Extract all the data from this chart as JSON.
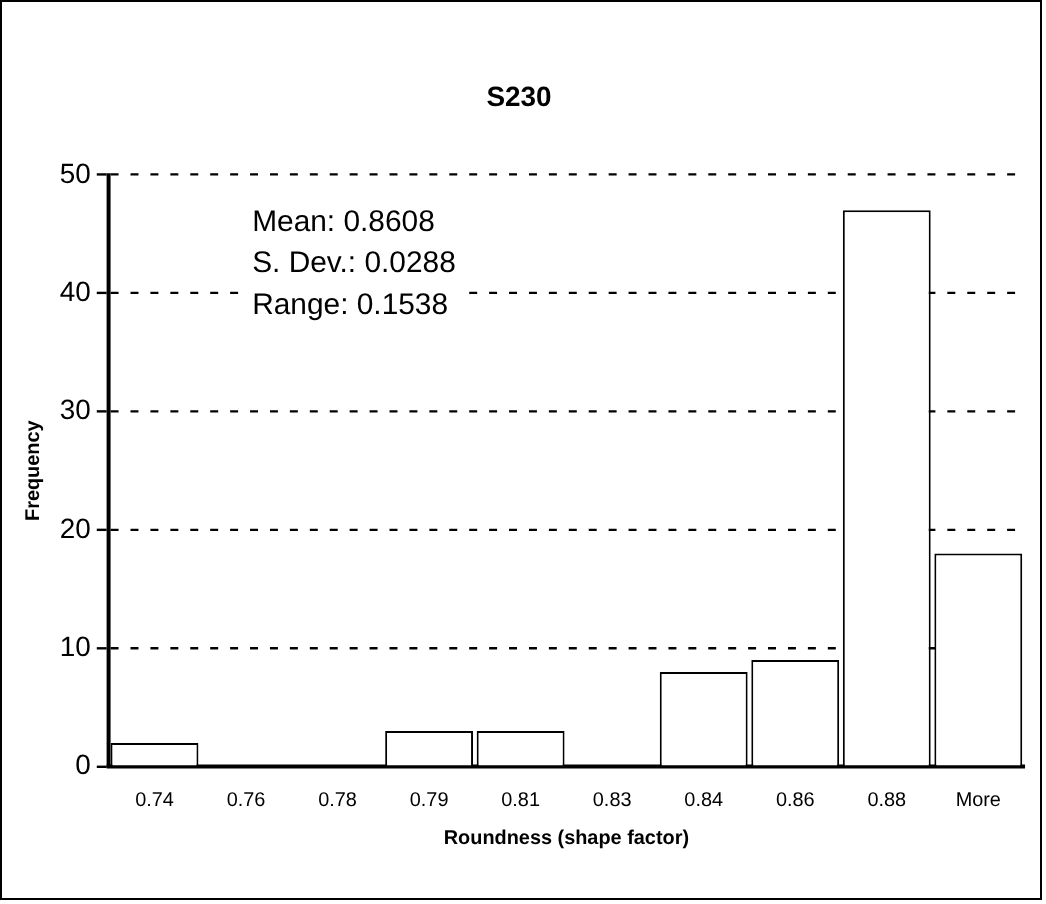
{
  "chart_data": {
    "type": "bar",
    "title": "S230",
    "xlabel": "Roundness (shape factor)",
    "ylabel": "Frequency",
    "categories": [
      "0.74",
      "0.76",
      "0.78",
      "0.79",
      "0.81",
      "0.83",
      "0.84",
      "0.86",
      "0.88",
      "More"
    ],
    "values": [
      2,
      0,
      0,
      3,
      3,
      0,
      8,
      9,
      47,
      18
    ],
    "color": "#ffffff",
    "ylim": [
      0,
      50
    ],
    "yticks": [
      0,
      10,
      20,
      30,
      40,
      50
    ],
    "grid": "y",
    "annotations": [
      "Mean: 0.8608",
      "S. Dev.: 0.0288",
      "Range: 0.1538"
    ]
  }
}
